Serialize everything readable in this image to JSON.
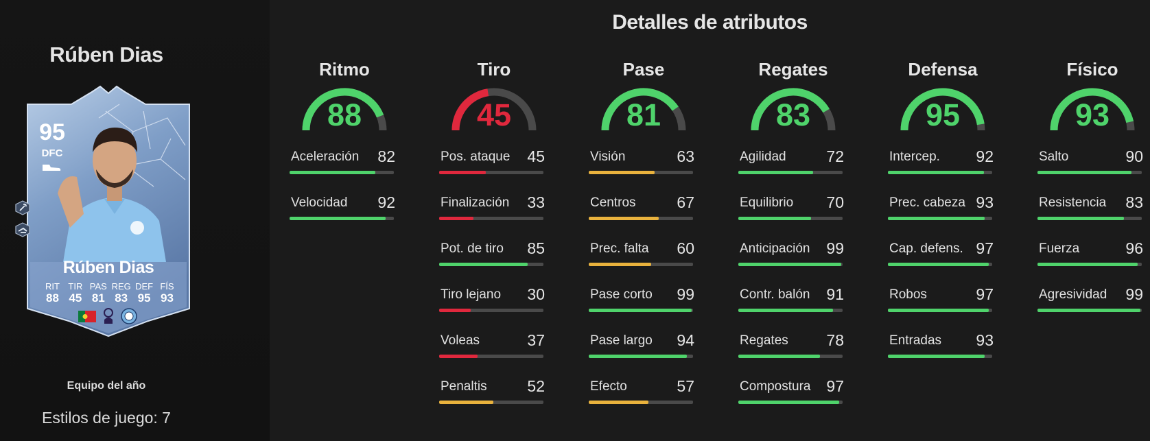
{
  "player": {
    "name": "Rúben Dias",
    "card_rating": "95",
    "card_position": "DFC",
    "card_name": "Rúben Dias",
    "card_stats": [
      {
        "label": "RIT",
        "value": "88"
      },
      {
        "label": "TIR",
        "value": "45"
      },
      {
        "label": "PAS",
        "value": "81"
      },
      {
        "label": "REG",
        "value": "83"
      },
      {
        "label": "DEF",
        "value": "95"
      },
      {
        "label": "FÍS",
        "value": "93"
      }
    ],
    "promo": "Equipo del año",
    "playstyles": "Estilos de juego: 7"
  },
  "title": "Detalles de atributos",
  "colors": {
    "high": "#4fd36b",
    "mid": "#e9b23d",
    "low": "#e0283d",
    "track": "#4a4a4a"
  },
  "categories": [
    {
      "name": "Ritmo",
      "value": "88",
      "stats": [
        {
          "label": "Aceleración",
          "value": "82"
        },
        {
          "label": "Velocidad",
          "value": "92"
        }
      ]
    },
    {
      "name": "Tiro",
      "value": "45",
      "stats": [
        {
          "label": "Pos. ataque",
          "value": "45"
        },
        {
          "label": "Finalización",
          "value": "33"
        },
        {
          "label": "Pot. de tiro",
          "value": "85"
        },
        {
          "label": "Tiro lejano",
          "value": "30"
        },
        {
          "label": "Voleas",
          "value": "37"
        },
        {
          "label": "Penaltis",
          "value": "52"
        }
      ]
    },
    {
      "name": "Pase",
      "value": "81",
      "stats": [
        {
          "label": "Visión",
          "value": "63"
        },
        {
          "label": "Centros",
          "value": "67"
        },
        {
          "label": "Prec. falta",
          "value": "60"
        },
        {
          "label": "Pase corto",
          "value": "99"
        },
        {
          "label": "Pase largo",
          "value": "94"
        },
        {
          "label": "Efecto",
          "value": "57"
        }
      ]
    },
    {
      "name": "Regates",
      "value": "83",
      "stats": [
        {
          "label": "Agilidad",
          "value": "72"
        },
        {
          "label": "Equilibrio",
          "value": "70"
        },
        {
          "label": "Anticipación",
          "value": "99"
        },
        {
          "label": "Contr. balón",
          "value": "91"
        },
        {
          "label": "Regates",
          "value": "78"
        },
        {
          "label": "Compostura",
          "value": "97"
        }
      ]
    },
    {
      "name": "Defensa",
      "value": "95",
      "stats": [
        {
          "label": "Intercep.",
          "value": "92"
        },
        {
          "label": "Prec. cabeza",
          "value": "93"
        },
        {
          "label": "Cap. defens.",
          "value": "97"
        },
        {
          "label": "Robos",
          "value": "97"
        },
        {
          "label": "Entradas",
          "value": "93"
        }
      ]
    },
    {
      "name": "Físico",
      "value": "93",
      "stats": [
        {
          "label": "Salto",
          "value": "90"
        },
        {
          "label": "Resistencia",
          "value": "83"
        },
        {
          "label": "Fuerza",
          "value": "96"
        },
        {
          "label": "Agresividad",
          "value": "99"
        }
      ]
    }
  ]
}
